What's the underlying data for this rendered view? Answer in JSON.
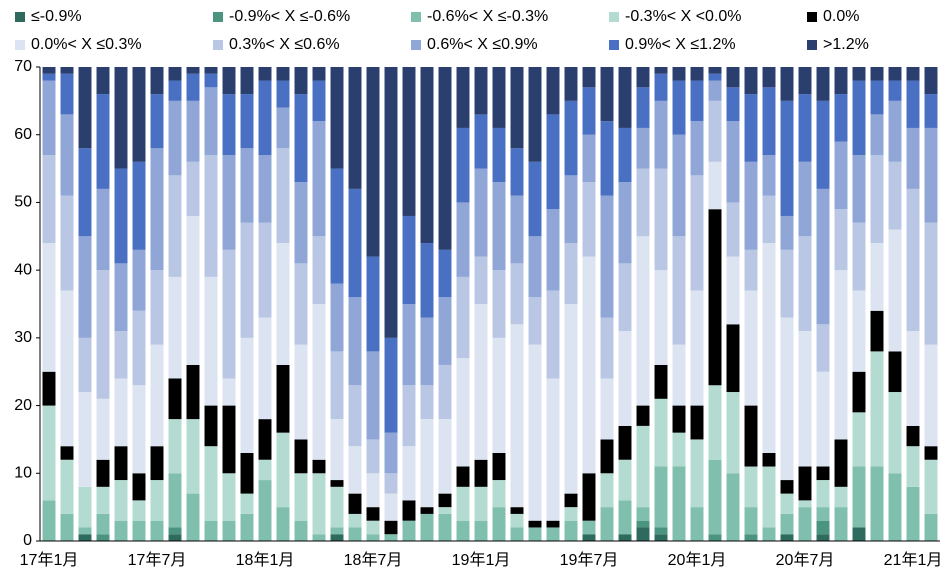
{
  "chart_data": {
    "type": "stacked_bar",
    "categories": [
      "17年1月",
      null,
      null,
      null,
      null,
      null,
      "17年7月",
      null,
      null,
      null,
      null,
      null,
      "18年1月",
      null,
      null,
      null,
      null,
      null,
      "18年7月",
      null,
      null,
      null,
      null,
      null,
      "19年1月",
      null,
      null,
      null,
      null,
      null,
      "19年7月",
      null,
      null,
      null,
      null,
      null,
      "20年1月",
      null,
      null,
      null,
      null,
      null,
      "20年7月",
      null,
      null,
      null,
      null,
      null,
      "21年1月",
      null
    ],
    "ylim": [
      0,
      70
    ],
    "yticks": [
      0,
      10,
      20,
      30,
      40,
      50,
      60,
      70
    ],
    "grid": false,
    "series": [
      {
        "name": "≤-0.9%",
        "color": "#2e6b5e",
        "values": [
          0,
          0,
          1,
          0,
          0,
          0,
          0,
          1,
          0,
          0,
          0,
          0,
          0,
          0,
          0,
          0,
          1,
          0,
          0,
          0,
          0,
          0,
          0,
          0,
          0,
          0,
          0,
          0,
          0,
          0,
          1,
          0,
          1,
          2,
          1,
          0,
          0,
          0,
          0,
          0,
          0,
          1,
          0,
          1,
          0,
          2,
          0,
          0,
          0,
          0
        ]
      },
      {
        "name": "-0.9%< X ≤-0.6%",
        "color": "#4a9480",
        "values": [
          0,
          0,
          0,
          1,
          0,
          0,
          0,
          1,
          0,
          0,
          0,
          0,
          0,
          0,
          0,
          0,
          0,
          0,
          0,
          0,
          0,
          0,
          0,
          0,
          0,
          0,
          0,
          0,
          0,
          0,
          0,
          0,
          0,
          1,
          1,
          0,
          0,
          1,
          0,
          1,
          0,
          0,
          0,
          2,
          0,
          0,
          0,
          0,
          0,
          0
        ]
      },
      {
        "name": "-0.6%< X ≤-0.3%",
        "color": "#80bfae",
        "values": [
          6,
          4,
          1,
          3,
          3,
          3,
          3,
          8,
          7,
          3,
          3,
          4,
          9,
          5,
          3,
          1,
          1,
          2,
          1,
          1,
          3,
          4,
          4,
          3,
          3,
          5,
          2,
          2,
          2,
          3,
          2,
          5,
          5,
          2,
          9,
          11,
          5,
          11,
          10,
          4,
          2,
          3,
          5,
          2,
          5,
          9,
          11,
          10,
          8,
          4
        ]
      },
      {
        "name": "-0.3%< X <0.0%",
        "color": "#b4dbd1",
        "values": [
          14,
          8,
          6,
          4,
          6,
          3,
          6,
          8,
          11,
          11,
          7,
          3,
          3,
          11,
          7,
          9,
          6,
          2,
          2,
          0,
          0,
          0,
          1,
          5,
          5,
          4,
          2,
          0,
          0,
          2,
          0,
          5,
          6,
          12,
          10,
          5,
          10,
          11,
          12,
          6,
          9,
          3,
          1,
          4,
          3,
          8,
          17,
          12,
          6,
          8
        ]
      },
      {
        "name": "0.0%",
        "color": "#000000",
        "values": [
          5,
          2,
          0,
          4,
          5,
          4,
          5,
          6,
          8,
          6,
          10,
          6,
          6,
          10,
          5,
          2,
          1,
          3,
          2,
          2,
          3,
          1,
          2,
          3,
          4,
          4,
          1,
          1,
          1,
          2,
          7,
          5,
          5,
          3,
          5,
          4,
          5,
          26,
          10,
          9,
          2,
          2,
          5,
          2,
          7,
          6,
          6,
          6,
          3,
          2
        ]
      },
      {
        "name": "0.0%< X ≤0.3%",
        "color": "#dce3f1",
        "values": [
          19,
          23,
          14,
          9,
          10,
          13,
          15,
          15,
          22,
          19,
          4,
          17,
          15,
          18,
          14,
          23,
          9,
          7,
          5,
          4,
          8,
          13,
          11,
          16,
          23,
          17,
          27,
          26,
          21,
          28,
          32,
          9,
          14,
          25,
          14,
          9,
          17,
          7,
          10,
          17,
          31,
          24,
          20,
          14,
          25,
          12,
          10,
          18,
          14,
          15
        ]
      },
      {
        "name": "0.3%< X ≤0.6%",
        "color": "#b9c7e4",
        "values": [
          13,
          14,
          8,
          19,
          7,
          11,
          11,
          15,
          8,
          18,
          19,
          17,
          14,
          14,
          12,
          10,
          10,
          9,
          5,
          3,
          9,
          5,
          8,
          12,
          7,
          10,
          9,
          7,
          13,
          9,
          11,
          9,
          10,
          10,
          15,
          16,
          17,
          9,
          8,
          6,
          7,
          10,
          14,
          7,
          9,
          10,
          13,
          10,
          21,
          18
        ]
      },
      {
        "name": "0.6%< X ≤0.9%",
        "color": "#8fa6d6",
        "values": [
          11,
          12,
          15,
          12,
          10,
          9,
          18,
          11,
          9,
          10,
          14,
          11,
          10,
          6,
          12,
          17,
          10,
          13,
          13,
          6,
          12,
          10,
          10,
          11,
          13,
          13,
          10,
          9,
          12,
          10,
          7,
          18,
          12,
          6,
          10,
          15,
          8,
          3,
          12,
          13,
          6,
          5,
          11,
          20,
          10,
          10,
          6,
          9,
          9,
          14
        ]
      },
      {
        "name": "0.9%< X ≤1.2%",
        "color": "#4a70c4",
        "values": [
          1,
          6,
          13,
          14,
          14,
          13,
          8,
          3,
          4,
          2,
          9,
          8,
          11,
          4,
          13,
          6,
          17,
          16,
          14,
          14,
          13,
          11,
          7,
          11,
          8,
          8,
          7,
          11,
          14,
          11,
          7,
          11,
          8,
          6,
          4,
          8,
          6,
          1,
          5,
          10,
          10,
          17,
          10,
          13,
          7,
          11,
          5,
          3,
          7,
          5
        ]
      },
      {
        "name": ">1.2%",
        "color": "#2b3f6e",
        "values": [
          1,
          1,
          12,
          4,
          15,
          14,
          4,
          2,
          1,
          1,
          4,
          4,
          2,
          2,
          4,
          2,
          15,
          18,
          28,
          40,
          22,
          26,
          27,
          9,
          7,
          9,
          12,
          14,
          7,
          5,
          3,
          8,
          9,
          3,
          1,
          2,
          2,
          1,
          3,
          4,
          3,
          5,
          4,
          5,
          4,
          2,
          2,
          2,
          2,
          4
        ]
      }
    ]
  }
}
